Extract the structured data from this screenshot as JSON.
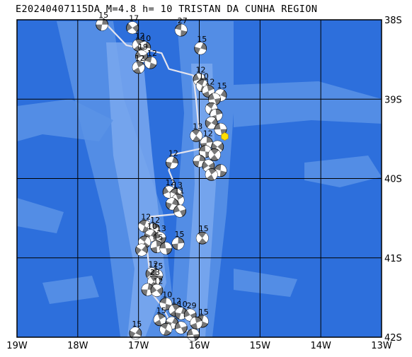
{
  "title": "E20240407115DA M=4.8 h= 10 TRISTAN DA CUNHA REGION",
  "map": {
    "lon_range": [
      -19,
      -13
    ],
    "lat_range": [
      -42,
      -38
    ],
    "lon_ticks": [
      {
        "value": -19,
        "label": "19W"
      },
      {
        "value": -18,
        "label": "18W"
      },
      {
        "value": -17,
        "label": "17W"
      },
      {
        "value": -16,
        "label": "16W"
      },
      {
        "value": -15,
        "label": "15W"
      },
      {
        "value": -14,
        "label": "14W"
      },
      {
        "value": -13,
        "label": "13W"
      }
    ],
    "lat_ticks": [
      {
        "value": -38,
        "label": "38S"
      },
      {
        "value": -39,
        "label": "39S"
      },
      {
        "value": -40,
        "label": "40S"
      },
      {
        "value": -41,
        "label": "41S"
      },
      {
        "value": -42,
        "label": "42S"
      }
    ],
    "colors": {
      "ocean": "#2d6fdc",
      "ridge": "#5b93e6",
      "ridge_light": "#7aa8ee",
      "grid": "#000000",
      "plate_boundary": "#e4e4ee",
      "beachball_dark": "#777777",
      "beachball_light": "#ffffff",
      "epicenter": "#ffe000"
    },
    "epicenter": {
      "lon": -15.58,
      "lat": -39.47,
      "symbol": "yellow-hexagon"
    },
    "plate_boundary": [
      [
        -17.6,
        -38.0
      ],
      [
        -17.2,
        -38.32
      ],
      [
        -16.62,
        -38.42
      ],
      [
        -16.5,
        -38.62
      ],
      [
        -16.1,
        -38.7
      ],
      [
        -16.05,
        -39.02
      ],
      [
        -16.0,
        -39.45
      ],
      [
        -15.95,
        -39.62
      ],
      [
        -16.45,
        -39.7
      ],
      [
        -16.5,
        -39.9
      ],
      [
        -16.42,
        -40.05
      ],
      [
        -16.45,
        -40.3
      ],
      [
        -16.4,
        -40.45
      ],
      [
        -16.8,
        -40.48
      ],
      [
        -16.9,
        -40.72
      ],
      [
        -16.85,
        -40.95
      ],
      [
        -16.78,
        -41.45
      ],
      [
        -16.6,
        -41.62
      ],
      [
        -16.5,
        -41.78
      ],
      [
        -16.3,
        -41.88
      ],
      [
        -16.0,
        -42.0
      ]
    ],
    "mechanisms": [
      {
        "lon": -17.6,
        "lat": -38.06,
        "label": "15"
      },
      {
        "lon": -17.1,
        "lat": -38.1,
        "label": "17"
      },
      {
        "lon": -16.3,
        "lat": -38.13,
        "label": "27"
      },
      {
        "lon": -17.0,
        "lat": -38.32,
        "label": "12"
      },
      {
        "lon": -16.9,
        "lat": -38.35,
        "label": "10"
      },
      {
        "lon": -16.95,
        "lat": -38.46,
        "label": "19"
      },
      {
        "lon": -16.8,
        "lat": -38.54,
        "label": "12"
      },
      {
        "lon": -17.0,
        "lat": -38.6,
        "label": "12"
      },
      {
        "lon": -15.98,
        "lat": -38.36,
        "label": "15"
      },
      {
        "lon": -16.0,
        "lat": -38.75,
        "label": "12"
      },
      {
        "lon": -15.95,
        "lat": -38.83,
        "label": "10"
      },
      {
        "lon": -15.85,
        "lat": -38.9,
        "label": "12"
      },
      {
        "lon": -15.65,
        "lat": -38.95,
        "label": "15"
      },
      {
        "lon": -15.75,
        "lat": -39.0,
        "label": ""
      },
      {
        "lon": -15.8,
        "lat": -39.12,
        "label": ""
      },
      {
        "lon": -15.72,
        "lat": -39.2,
        "label": ""
      },
      {
        "lon": -15.8,
        "lat": -39.3,
        "label": ""
      },
      {
        "lon": -15.65,
        "lat": -39.38,
        "label": ""
      },
      {
        "lon": -16.05,
        "lat": -39.46,
        "label": "13"
      },
      {
        "lon": -15.88,
        "lat": -39.55,
        "label": "12"
      },
      {
        "lon": -15.7,
        "lat": -39.6,
        "label": ""
      },
      {
        "lon": -15.9,
        "lat": -39.66,
        "label": ""
      },
      {
        "lon": -15.75,
        "lat": -39.7,
        "label": ""
      },
      {
        "lon": -16.0,
        "lat": -39.78,
        "label": ""
      },
      {
        "lon": -15.85,
        "lat": -39.84,
        "label": ""
      },
      {
        "lon": -15.65,
        "lat": -39.9,
        "label": ""
      },
      {
        "lon": -15.8,
        "lat": -39.95,
        "label": ""
      },
      {
        "lon": -16.45,
        "lat": -39.8,
        "label": "12"
      },
      {
        "lon": -16.5,
        "lat": -40.17,
        "label": "12"
      },
      {
        "lon": -16.38,
        "lat": -40.2,
        "label": "13"
      },
      {
        "lon": -16.35,
        "lat": -40.27,
        "label": "11"
      },
      {
        "lon": -16.45,
        "lat": -40.32,
        "label": ""
      },
      {
        "lon": -16.32,
        "lat": -40.41,
        "label": ""
      },
      {
        "lon": -16.9,
        "lat": -40.6,
        "label": "12"
      },
      {
        "lon": -16.75,
        "lat": -40.64,
        "label": "12"
      },
      {
        "lon": -16.8,
        "lat": -40.72,
        "label": "10"
      },
      {
        "lon": -16.65,
        "lat": -40.75,
        "label": "13"
      },
      {
        "lon": -16.9,
        "lat": -40.8,
        "label": ""
      },
      {
        "lon": -16.7,
        "lat": -40.86,
        "label": "15"
      },
      {
        "lon": -16.95,
        "lat": -40.9,
        "label": ""
      },
      {
        "lon": -16.55,
        "lat": -40.88,
        "label": ""
      },
      {
        "lon": -15.95,
        "lat": -40.75,
        "label": "15"
      },
      {
        "lon": -16.35,
        "lat": -40.82,
        "label": "15"
      },
      {
        "lon": -16.78,
        "lat": -41.2,
        "label": "12"
      },
      {
        "lon": -16.7,
        "lat": -41.22,
        "label": "15"
      },
      {
        "lon": -16.75,
        "lat": -41.3,
        "label": "23"
      },
      {
        "lon": -16.85,
        "lat": -41.4,
        "label": ""
      },
      {
        "lon": -16.7,
        "lat": -41.41,
        "label": "12"
      },
      {
        "lon": -16.55,
        "lat": -41.58,
        "label": "10"
      },
      {
        "lon": -16.4,
        "lat": -41.66,
        "label": "12"
      },
      {
        "lon": -16.3,
        "lat": -41.7,
        "label": "10"
      },
      {
        "lon": -16.15,
        "lat": -41.72,
        "label": "29"
      },
      {
        "lon": -15.95,
        "lat": -41.8,
        "label": "15"
      },
      {
        "lon": -16.65,
        "lat": -41.78,
        "label": "15"
      },
      {
        "lon": -16.45,
        "lat": -41.82,
        "label": ""
      },
      {
        "lon": -16.3,
        "lat": -41.88,
        "label": ""
      },
      {
        "lon": -16.55,
        "lat": -41.9,
        "label": ""
      },
      {
        "lon": -16.05,
        "lat": -41.82,
        "label": ""
      },
      {
        "lon": -17.05,
        "lat": -41.95,
        "label": "15"
      },
      {
        "lon": -16.1,
        "lat": -41.97,
        "label": ""
      }
    ]
  }
}
